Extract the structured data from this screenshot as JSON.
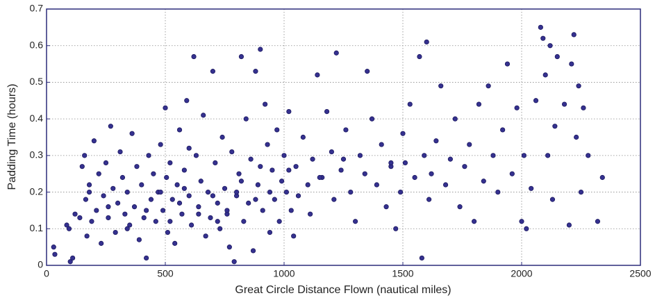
{
  "chart_data": {
    "type": "scatter",
    "xlabel": "Great Circle Distance Flown (nautical miles)",
    "ylabel": "Padding Time (hours)",
    "xlim": [
      0,
      2500
    ],
    "xticks": [
      0,
      500,
      1000,
      1500,
      2000,
      2500
    ],
    "ylim": [
      0,
      0.7
    ],
    "yticks": [
      0,
      0.1,
      0.2,
      0.3,
      0.4,
      0.5,
      0.6,
      0.7
    ],
    "grid": true,
    "color": "#35318f",
    "x": [
      30,
      35,
      85,
      95,
      100,
      110,
      120,
      140,
      150,
      160,
      165,
      170,
      180,
      190,
      200,
      210,
      220,
      230,
      240,
      250,
      260,
      270,
      280,
      290,
      300,
      310,
      320,
      330,
      340,
      350,
      360,
      370,
      380,
      390,
      400,
      410,
      420,
      430,
      440,
      450,
      460,
      470,
      480,
      490,
      500,
      505,
      510,
      520,
      530,
      540,
      550,
      560,
      570,
      580,
      590,
      600,
      610,
      620,
      630,
      640,
      650,
      660,
      670,
      680,
      690,
      700,
      710,
      720,
      730,
      740,
      750,
      760,
      770,
      780,
      790,
      800,
      810,
      820,
      830,
      840,
      850,
      860,
      870,
      880,
      890,
      900,
      910,
      920,
      930,
      940,
      950,
      960,
      970,
      980,
      990,
      1000,
      1010,
      1020,
      1030,
      1040,
      1050,
      1060,
      1080,
      1100,
      1110,
      1120,
      1140,
      1160,
      1180,
      1200,
      1210,
      1220,
      1240,
      1260,
      1280,
      1300,
      1320,
      1340,
      1350,
      1370,
      1390,
      1410,
      1430,
      1450,
      1470,
      1490,
      1500,
      1510,
      1530,
      1550,
      1570,
      1580,
      1590,
      1600,
      1610,
      1620,
      1640,
      1660,
      1680,
      1700,
      1720,
      1740,
      1760,
      1780,
      1800,
      1820,
      1840,
      1860,
      1880,
      1900,
      1920,
      1940,
      1960,
      1980,
      2000,
      2010,
      2020,
      2040,
      2060,
      2080,
      2090,
      2100,
      2110,
      2120,
      2130,
      2140,
      2150,
      2180,
      2200,
      2210,
      2220,
      2230,
      2240,
      2250,
      2260,
      2280,
      2320,
      2340,
      600,
      900,
      180,
      260,
      340,
      420,
      480,
      560,
      640,
      720,
      800,
      880,
      520,
      580,
      700,
      760,
      820,
      940,
      1020,
      1150,
      1250,
      1450
    ],
    "values": [
      0.05,
      0.03,
      0.11,
      0.1,
      0.01,
      0.02,
      0.14,
      0.13,
      0.27,
      0.3,
      0.18,
      0.08,
      0.22,
      0.12,
      0.34,
      0.15,
      0.25,
      0.06,
      0.19,
      0.28,
      0.13,
      0.38,
      0.21,
      0.09,
      0.17,
      0.31,
      0.24,
      0.14,
      0.2,
      0.11,
      0.36,
      0.16,
      0.27,
      0.07,
      0.22,
      0.13,
      0.02,
      0.3,
      0.18,
      0.25,
      0.12,
      0.2,
      0.33,
      0.15,
      0.43,
      0.24,
      0.09,
      0.28,
      0.18,
      0.06,
      0.22,
      0.37,
      0.14,
      0.26,
      0.45,
      0.19,
      0.11,
      0.57,
      0.3,
      0.16,
      0.23,
      0.41,
      0.08,
      0.2,
      0.13,
      0.53,
      0.28,
      0.17,
      0.1,
      0.35,
      0.21,
      0.14,
      0.05,
      0.31,
      0.01,
      0.19,
      0.25,
      0.57,
      0.12,
      0.4,
      0.17,
      0.29,
      0.04,
      0.53,
      0.22,
      0.59,
      0.15,
      0.44,
      0.33,
      0.09,
      0.26,
      0.18,
      0.37,
      0.12,
      0.23,
      0.3,
      0.2,
      0.42,
      0.15,
      0.08,
      0.27,
      0.19,
      0.35,
      0.22,
      0.14,
      0.29,
      0.52,
      0.24,
      0.42,
      0.31,
      0.18,
      0.58,
      0.26,
      0.37,
      0.2,
      0.12,
      0.3,
      0.25,
      0.53,
      0.4,
      0.22,
      0.33,
      0.16,
      0.27,
      0.1,
      0.2,
      0.36,
      0.28,
      0.44,
      0.24,
      0.57,
      0.02,
      0.3,
      0.61,
      0.18,
      0.25,
      0.34,
      0.49,
      0.22,
      0.29,
      0.4,
      0.16,
      0.27,
      0.33,
      0.12,
      0.44,
      0.23,
      0.49,
      0.3,
      0.2,
      0.37,
      0.55,
      0.25,
      0.43,
      0.12,
      0.3,
      0.1,
      0.21,
      0.45,
      0.65,
      0.62,
      0.52,
      0.3,
      0.6,
      0.18,
      0.38,
      0.57,
      0.44,
      0.11,
      0.55,
      0.63,
      0.35,
      0.49,
      0.2,
      0.43,
      0.3,
      0.12,
      0.24,
      0.32,
      0.27,
      0.2,
      0.16,
      0.1,
      0.15,
      0.2,
      0.17,
      0.14,
      0.12,
      0.2,
      0.18,
      0.12,
      0.21,
      0.19,
      0.15,
      0.23,
      0.2,
      0.26,
      0.24,
      0.29,
      0.28
    ]
  }
}
